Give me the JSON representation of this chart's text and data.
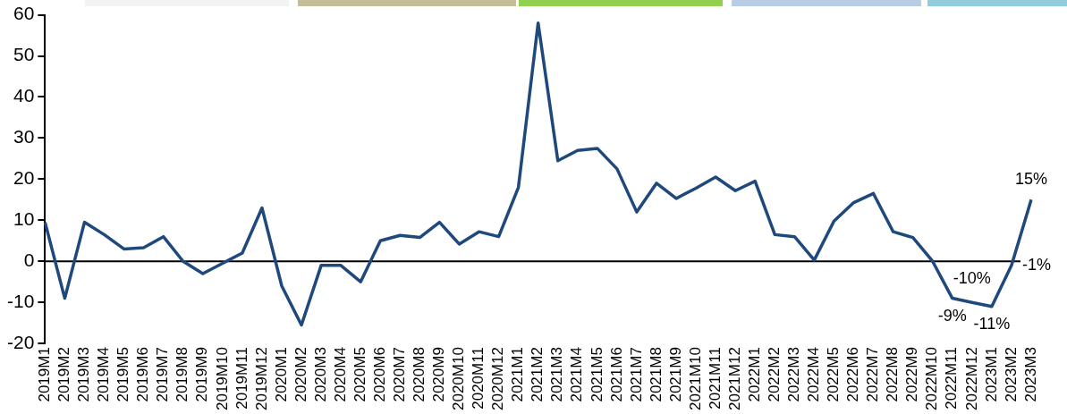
{
  "chart_data": {
    "type": "line",
    "categories": [
      "2019M1",
      "2019M2",
      "2019M3",
      "2019M4",
      "2019M5",
      "2019M6",
      "2019M7",
      "2019M8",
      "2019M9",
      "2019M10",
      "2019M11",
      "2019M12",
      "2020M1",
      "2020M2",
      "2020M3",
      "2020M4",
      "2020M5",
      "2020M6",
      "2020M7",
      "2020M8",
      "2020M9",
      "2020M10",
      "2020M11",
      "2020M12",
      "2021M1",
      "2021M2",
      "2021M3",
      "2021M4",
      "2021M5",
      "2021M6",
      "2021M7",
      "2021M8",
      "2021M9",
      "2021M10",
      "2021M11",
      "2021M12",
      "2022M1",
      "2022M2",
      "2022M3",
      "2022M4",
      "2022M5",
      "2022M6",
      "2022M7",
      "2022M8",
      "2022M9",
      "2022M10",
      "2022M11",
      "2022M12",
      "2023M1",
      "2023M2",
      "2023M3"
    ],
    "series": [
      {
        "color": "#1f497d",
        "values": [
          9.5,
          -9,
          9.5,
          6.5,
          3,
          3.3,
          6,
          0,
          -3,
          -0.5,
          2,
          13,
          -6,
          -15.5,
          -1,
          -1,
          -5,
          5,
          6.3,
          5.8,
          9.5,
          4.2,
          7.2,
          6,
          18,
          58,
          24.5,
          27,
          27.5,
          22.5,
          12,
          19,
          15.3,
          17.8,
          20.5,
          17.2,
          19.5,
          6.5,
          6,
          0.3,
          9.8,
          14.3,
          16.5,
          7.2,
          5.8,
          0,
          -9,
          -10,
          -11,
          -1,
          15
        ],
        "value_labels": [
          null,
          null,
          null,
          null,
          null,
          null,
          null,
          null,
          null,
          null,
          null,
          null,
          null,
          null,
          null,
          null,
          null,
          null,
          null,
          null,
          null,
          null,
          null,
          null,
          null,
          null,
          null,
          null,
          null,
          null,
          null,
          null,
          null,
          null,
          null,
          null,
          null,
          null,
          null,
          null,
          null,
          null,
          null,
          null,
          null,
          null,
          "-9%",
          "-10%",
          "-11%",
          "-1%",
          "15%"
        ]
      }
    ],
    "ylim": [
      -20,
      60
    ],
    "yticks": [
      -20,
      -10,
      0,
      10,
      20,
      30,
      40,
      50,
      60
    ],
    "ref_lines": [
      {
        "axis": "y",
        "value": 0,
        "color": "#000000"
      }
    ],
    "grid": false,
    "legend": false,
    "marker": "none",
    "line_style": "solid"
  }
}
